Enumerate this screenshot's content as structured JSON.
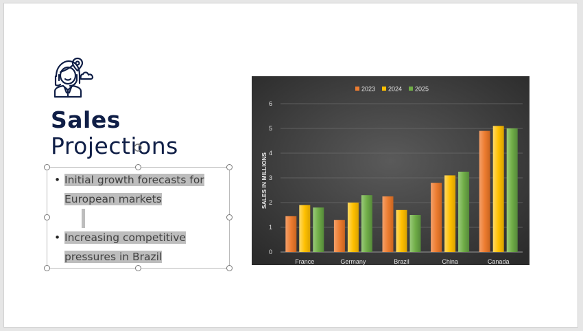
{
  "slide": {
    "title_line1": "Sales",
    "title_line2": "Projections",
    "bullets": [
      "Initial growth forecasts for European markets",
      "Increasing competitive pressures in Brazil"
    ]
  },
  "icons": {
    "avatar": "person-with-headset-and-cloud-icon",
    "rotate": "rotate-handle-icon"
  },
  "colors": {
    "title": "#0f1e46",
    "selection_highlight": "#bdbdbd",
    "chart_bg_center": "#5a5a5a",
    "chart_bg_edge": "#2b2b2b",
    "series_2023": "#ed7d31",
    "series_2024": "#ffc000",
    "series_2025": "#70ad47"
  },
  "chart_data": {
    "type": "bar",
    "title": "",
    "xlabel": "",
    "ylabel": "SALES IN MILLIONS",
    "categories": [
      "France",
      "Germany",
      "Brazil",
      "China",
      "Canada"
    ],
    "series": [
      {
        "name": "2023",
        "values": [
          1.45,
          1.3,
          2.25,
          2.8,
          4.9
        ]
      },
      {
        "name": "2024",
        "values": [
          1.9,
          2.0,
          1.7,
          3.1,
          5.1
        ]
      },
      {
        "name": "2025",
        "values": [
          1.8,
          2.3,
          1.5,
          3.25,
          5.0
        ]
      }
    ],
    "ylim": [
      0,
      6
    ],
    "yticks": [
      0,
      1,
      2,
      3,
      4,
      5,
      6
    ],
    "grid": true,
    "legend": "top-center"
  }
}
